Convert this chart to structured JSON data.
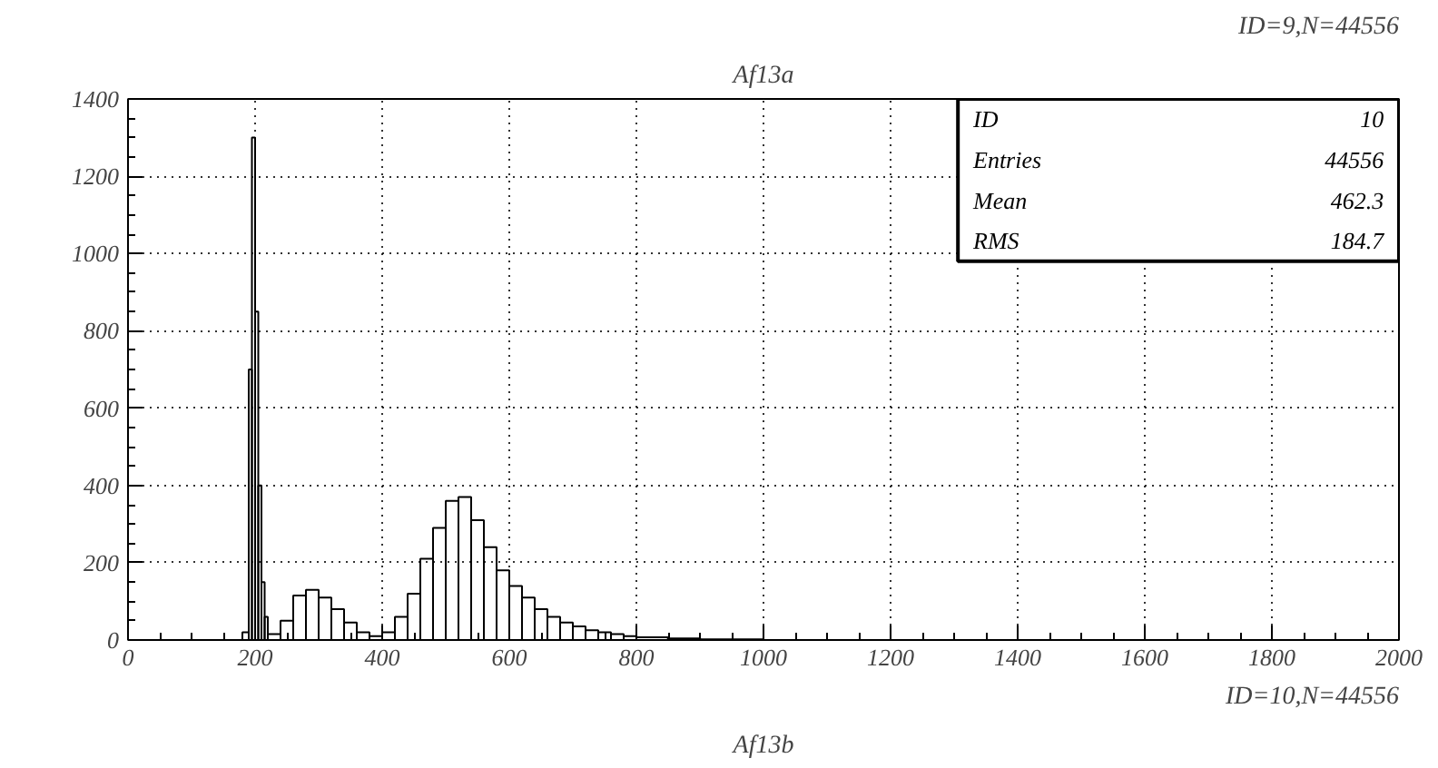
{
  "chart_data": {
    "type": "histogram",
    "title": "Af13a",
    "color": "#000000",
    "bins": [
      180,
      190,
      195,
      200,
      205,
      210,
      215,
      220,
      240,
      260,
      280,
      300,
      320,
      340,
      360,
      380,
      400,
      420,
      440,
      460,
      480,
      500,
      520,
      540,
      560,
      580,
      600,
      620,
      640,
      660,
      680,
      700,
      720,
      740,
      760,
      780,
      800,
      850,
      900,
      1000
    ],
    "values": [
      20,
      700,
      1300,
      850,
      400,
      150,
      60,
      15,
      50,
      115,
      130,
      110,
      80,
      45,
      20,
      10,
      20,
      60,
      120,
      210,
      290,
      360,
      370,
      310,
      240,
      180,
      140,
      110,
      80,
      60,
      45,
      35,
      25,
      20,
      15,
      10,
      7,
      4,
      2
    ],
    "xlim": [
      0,
      2000
    ],
    "ylim": [
      0,
      1400
    ],
    "xticks": [
      0,
      200,
      400,
      600,
      800,
      1000,
      1200,
      1400,
      1600,
      1800,
      2000
    ],
    "yticks": [
      0,
      200,
      400,
      600,
      800,
      1000,
      1200,
      1400
    ],
    "grid": true,
    "annotations": [
      "ID=9,N=44556",
      "ID=10,N=44556",
      "Af13b",
      "ID",
      "10",
      "Entries",
      "44556",
      "Mean",
      "462.3",
      "RMS",
      "184.7"
    ]
  }
}
